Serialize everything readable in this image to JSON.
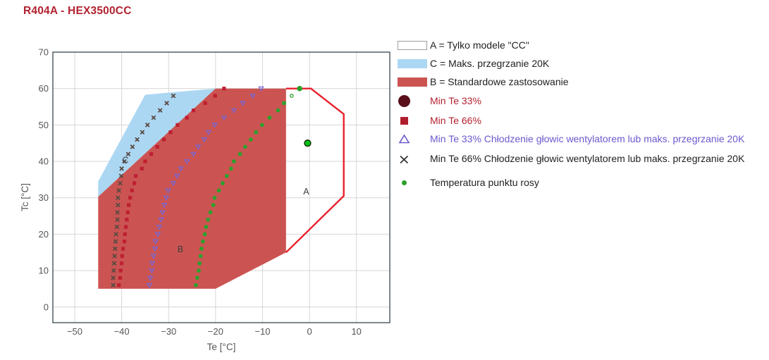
{
  "header": {
    "title": "R404A - HEX3500CC",
    "color": "#b22230"
  },
  "legend": {
    "items": [
      {
        "swatch": "box",
        "fill": "#ffffff",
        "border": "#9e9e9e",
        "label": "A = Tylko modele \"CC\"",
        "text_color": "#212121"
      },
      {
        "swatch": "box",
        "fill": "#abd7f3",
        "border": "#abd7f3",
        "label": "C = Maks. przegrzanie 20K",
        "text_color": "#212121"
      },
      {
        "swatch": "box",
        "fill": "#cb5452",
        "border": "#cb5452",
        "label": "B = Standardowe zastosowanie",
        "text_color": "#212121"
      },
      {
        "swatch": "circle",
        "fill": "#5a0f1b",
        "label": "Min Te 33%",
        "text_color": "#b22230"
      },
      {
        "swatch": "square",
        "fill": "#b01e2e",
        "label": "Min Te 66%",
        "text_color": "#b22230"
      },
      {
        "swatch": "triangle",
        "stroke": "#6a5acd",
        "label": "Min Te 33% Chłodzenie głowic wentylatorem lub maks. przegrzanie 20K",
        "text_color": "#6a5acd"
      },
      {
        "swatch": "x",
        "stroke": "#333333",
        "label": "Min Te 66% Chłodzenie głowic wentylatorem lub maks. przegrzanie 20K",
        "text_color": "#212121"
      },
      {
        "swatch": "dot",
        "fill": "#2ca02c",
        "label": "Temperatura punktu rosy",
        "text_color": "#212121"
      }
    ]
  },
  "chart_data": {
    "type": "scatter",
    "title": "R404A - HEX3500CC",
    "xlabel": "Te [°C]",
    "ylabel": "Tc [°C]",
    "xlim": [
      -54.65,
      17.1
    ],
    "ylim": [
      -4.3,
      70
    ],
    "x_ticks": [
      -50,
      -40,
      -30,
      -20,
      -10,
      0,
      10
    ],
    "x_tick_labels": [
      "−50",
      "−40",
      "−30",
      "−20",
      "−10",
      "0",
      "10"
    ],
    "y_ticks": [
      0,
      10,
      20,
      30,
      40,
      50,
      60,
      70
    ],
    "y_tick_labels": [
      "0",
      "10",
      "20",
      "30",
      "40",
      "50",
      "60",
      "70"
    ],
    "grid": true,
    "legend_position": "right",
    "colors": {
      "grid": "#d6d6d6",
      "frame": "#37474f",
      "tick": "#555555",
      "axis_label": "#555555",
      "region_label": "#3d3d3d"
    },
    "regions": [
      {
        "name": "C",
        "label": "C",
        "label_xy": [
          -39.2,
          40.3
        ],
        "fill": "#abd7f3",
        "points": [
          [
            -45,
            30.3
          ],
          [
            -45,
            34.5
          ],
          [
            -35,
            58.3
          ],
          [
            -20,
            60
          ]
        ]
      },
      {
        "name": "B",
        "label": "B",
        "label_xy": [
          -27.5,
          15.8
        ],
        "fill": "#cb5452",
        "points": [
          [
            -45,
            30.3
          ],
          [
            -20,
            60
          ],
          [
            -5,
            60
          ],
          [
            -5,
            15
          ],
          [
            -20,
            5
          ],
          [
            -45,
            5
          ]
        ]
      },
      {
        "name": "A",
        "label": "A",
        "label_xy": [
          -0.7,
          31.7
        ],
        "fill": "none",
        "outline": "#e8202c",
        "points": [
          [
            -5,
            60
          ],
          [
            0.3,
            60
          ],
          [
            7.3,
            53
          ],
          [
            7.3,
            30.5
          ],
          [
            -5,
            15
          ]
        ]
      }
    ],
    "series": [
      {
        "name": "Min Te 66%",
        "marker": "square",
        "color": "#be1f31",
        "points": [
          [
            -18.2,
            60
          ],
          [
            -20.1,
            58
          ],
          [
            -22.2,
            56
          ],
          [
            -24.7,
            54
          ],
          [
            -26.1,
            52
          ],
          [
            -28.1,
            50
          ],
          [
            -29.6,
            48
          ],
          [
            -31.0,
            46
          ],
          [
            -32.4,
            44
          ],
          [
            -33.7,
            42
          ],
          [
            -35.0,
            40
          ],
          [
            -35.7,
            38
          ],
          [
            -37.0,
            36
          ],
          [
            -37.3,
            34
          ],
          [
            -37.8,
            32
          ],
          [
            -38.2,
            30
          ],
          [
            -38.5,
            28
          ],
          [
            -38.7,
            26
          ],
          [
            -38.9,
            24
          ],
          [
            -39.1,
            22
          ],
          [
            -39.3,
            20
          ],
          [
            -39.4,
            18
          ],
          [
            -39.7,
            16
          ],
          [
            -39.9,
            14
          ],
          [
            -40.0,
            12
          ],
          [
            -40.2,
            10
          ],
          [
            -40.3,
            8
          ],
          [
            -40.6,
            6
          ]
        ]
      },
      {
        "name": "Min Te 33% Chłodzenie głowic wentylatorem lub maks. przegrzanie 20K",
        "marker": "triangle-down",
        "color": "#7668d8",
        "points": [
          [
            -10.3,
            60
          ],
          [
            -12.1,
            58
          ],
          [
            -14.2,
            56
          ],
          [
            -16.1,
            54
          ],
          [
            -18.2,
            52
          ],
          [
            -20.2,
            50
          ],
          [
            -21.5,
            48
          ],
          [
            -22.4,
            46
          ],
          [
            -23.7,
            44
          ],
          [
            -24.7,
            42
          ],
          [
            -26.1,
            40
          ],
          [
            -27.4,
            38
          ],
          [
            -28.2,
            36
          ],
          [
            -29.0,
            34
          ],
          [
            -30.1,
            32
          ],
          [
            -30.5,
            30
          ],
          [
            -30.9,
            28
          ],
          [
            -31.3,
            26
          ],
          [
            -31.6,
            24
          ],
          [
            -32.0,
            22
          ],
          [
            -32.3,
            20
          ],
          [
            -32.8,
            18
          ],
          [
            -32.9,
            16
          ],
          [
            -33.2,
            14
          ],
          [
            -33.5,
            12
          ],
          [
            -33.6,
            10
          ],
          [
            -33.9,
            8
          ],
          [
            -34.1,
            6
          ]
        ]
      },
      {
        "name": "Min Te 66% Chłodzenie głowic wentylatorem lub maks. przegrzanie 20K",
        "marker": "x",
        "color": "#5a4a42",
        "points": [
          [
            -29.0,
            58
          ],
          [
            -30.4,
            56
          ],
          [
            -31.8,
            54
          ],
          [
            -33.2,
            52
          ],
          [
            -34.5,
            50
          ],
          [
            -35.6,
            48
          ],
          [
            -36.7,
            46
          ],
          [
            -37.7,
            44
          ],
          [
            -38.6,
            42
          ],
          [
            -39.4,
            40
          ],
          [
            -40.0,
            38
          ],
          [
            -40.1,
            36
          ],
          [
            -40.3,
            34
          ],
          [
            -40.6,
            32
          ],
          [
            -40.8,
            30
          ],
          [
            -40.8,
            28
          ],
          [
            -40.9,
            26
          ],
          [
            -40.9,
            24
          ],
          [
            -41.0,
            22
          ],
          [
            -41.2,
            20
          ],
          [
            -41.3,
            18
          ],
          [
            -41.4,
            16
          ],
          [
            -41.5,
            14
          ],
          [
            -41.6,
            12
          ],
          [
            -41.7,
            10
          ],
          [
            -41.8,
            8
          ],
          [
            -41.8,
            6
          ]
        ]
      },
      {
        "name": "Temperatura punktu rosy",
        "marker": "dot",
        "color": "#2ca02c",
        "points": [
          [
            -5.4,
            56
          ],
          [
            -6.7,
            54
          ],
          [
            -8.5,
            52
          ],
          [
            -10.1,
            50
          ],
          [
            -11.4,
            48
          ],
          [
            -12.5,
            46
          ],
          [
            -13.7,
            44
          ],
          [
            -14.8,
            42
          ],
          [
            -16.1,
            40
          ],
          [
            -16.7,
            38
          ],
          [
            -17.6,
            36
          ],
          [
            -18.5,
            34
          ],
          [
            -19.3,
            32
          ],
          [
            -20.2,
            30
          ],
          [
            -20.5,
            28
          ],
          [
            -21.1,
            26
          ],
          [
            -21.6,
            24
          ],
          [
            -22.0,
            22
          ],
          [
            -22.3,
            20
          ],
          [
            -22.7,
            18
          ],
          [
            -23.0,
            16
          ],
          [
            -23.2,
            14
          ],
          [
            -23.4,
            12
          ],
          [
            -23.6,
            10
          ],
          [
            -23.9,
            8
          ],
          [
            -24.2,
            6
          ]
        ]
      }
    ],
    "highlight_points": [
      {
        "name": "dew-point-top-dot",
        "marker": "dot",
        "color": "#2ca02c",
        "xy": [
          -2.1,
          60
        ],
        "r": 3.8
      },
      {
        "name": "dew-point-ring",
        "marker": "ring",
        "color": "#2ca02c",
        "xy": [
          -3.8,
          58
        ],
        "r": 2.2
      },
      {
        "name": "large-green-point",
        "marker": "circle-outlined",
        "fill": "#00c213",
        "edge": "#143a12",
        "xy": [
          -0.4,
          45
        ],
        "r": 4.4
      }
    ]
  }
}
